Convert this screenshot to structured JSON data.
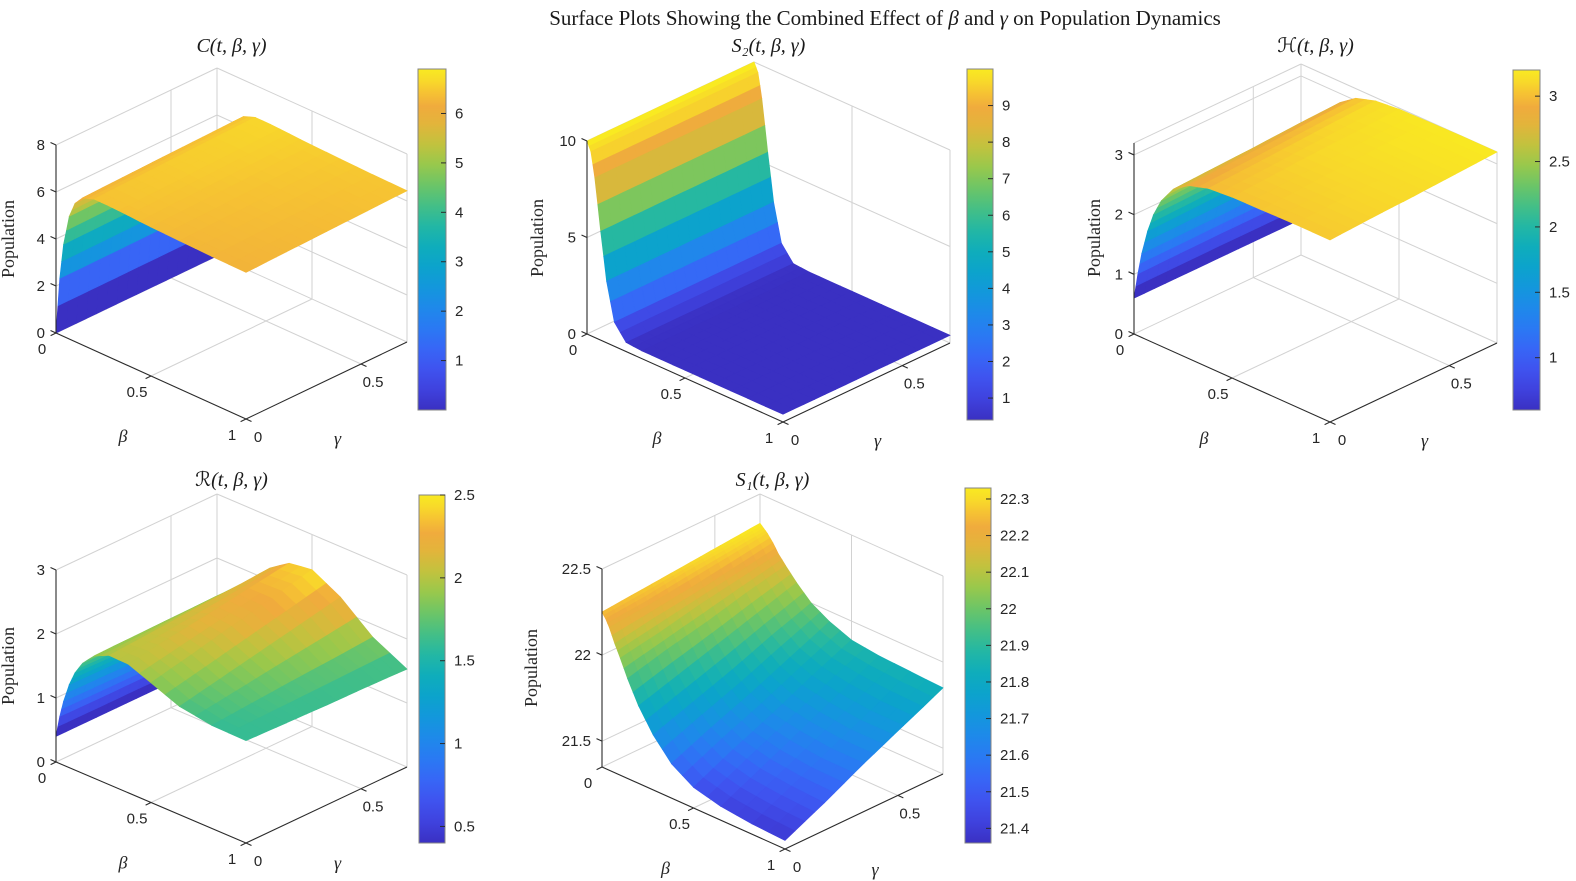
{
  "figure": {
    "title": "Surface Plots Showing the Combined Effect of β and γ on Population Dynamics",
    "background": "#ffffff"
  },
  "colors": {
    "colormap": "parula",
    "grid": "#d2d2d2",
    "axis": "#2b2b2b",
    "text": "#262626",
    "colorbar_border": "#848484"
  },
  "chart_data": [
    {
      "type": "surface",
      "title": "C(t, β, γ)",
      "xlabel": "β",
      "ylabel": "γ",
      "zlabel": "Population",
      "beta": [
        0,
        0.02,
        0.04,
        0.07,
        0.1,
        0.14,
        0.2,
        0.28,
        0.38,
        0.5,
        0.65,
        0.82,
        1.0
      ],
      "gamma": [
        0,
        0.175,
        0.35,
        0.525,
        0.7
      ],
      "z_by_gamma_row": [
        [
          0,
          2.4,
          3.92,
          5.22,
          5.88,
          6.26,
          6.43,
          6.43,
          6.39,
          6.34,
          6.3,
          6.26,
          6.24
        ],
        [
          0,
          2.41,
          3.95,
          5.26,
          5.92,
          6.31,
          6.48,
          6.48,
          6.44,
          6.39,
          6.35,
          6.31,
          6.29
        ],
        [
          0,
          2.43,
          3.97,
          5.3,
          5.97,
          6.36,
          6.53,
          6.53,
          6.49,
          6.44,
          6.4,
          6.36,
          6.34
        ],
        [
          0,
          2.45,
          4.0,
          5.34,
          6.01,
          6.4,
          6.58,
          6.58,
          6.54,
          6.49,
          6.45,
          6.41,
          6.39
        ],
        [
          0,
          2.47,
          4.03,
          5.38,
          6.06,
          6.45,
          6.63,
          6.63,
          6.59,
          6.54,
          6.5,
          6.46,
          6.44
        ]
      ],
      "xticks": [
        0,
        0.5,
        1
      ],
      "yticks": [
        0,
        0.5
      ],
      "zticks": [
        0,
        2,
        4,
        6,
        8
      ],
      "zlim": [
        0,
        8
      ],
      "clim": [
        0,
        6.9
      ],
      "colorbar_ticks": [
        1,
        2,
        3,
        4,
        5,
        6
      ]
    },
    {
      "type": "surface",
      "title": "S₂(t, β, γ)",
      "xlabel": "β",
      "ylabel": "γ",
      "zlabel": "Population",
      "beta": [
        0,
        0.02,
        0.04,
        0.07,
        0.1,
        0.14,
        0.2,
        0.28,
        0.38,
        0.5,
        0.65,
        0.82,
        1.0
      ],
      "gamma": [
        0,
        0.175,
        0.35,
        0.525,
        0.7
      ],
      "z_by_gamma_row": [
        [
          10,
          9.54,
          8.28,
          5.64,
          3.19,
          1.25,
          0.47,
          0.4,
          0.4,
          0.4,
          0.4,
          0.4,
          0.4
        ],
        [
          10,
          9.54,
          8.28,
          5.64,
          3.19,
          1.25,
          0.47,
          0.4,
          0.4,
          0.4,
          0.4,
          0.4,
          0.4
        ],
        [
          10,
          9.54,
          8.28,
          5.64,
          3.19,
          1.25,
          0.47,
          0.4,
          0.4,
          0.4,
          0.4,
          0.4,
          0.4
        ],
        [
          10,
          9.54,
          8.28,
          5.64,
          3.19,
          1.25,
          0.47,
          0.4,
          0.4,
          0.4,
          0.4,
          0.4,
          0.4
        ],
        [
          10,
          9.54,
          8.28,
          5.64,
          3.19,
          1.25,
          0.47,
          0.4,
          0.4,
          0.4,
          0.4,
          0.4,
          0.4
        ]
      ],
      "xticks": [
        0,
        0.5,
        1
      ],
      "yticks": [
        0,
        0.5
      ],
      "zticks": [
        0,
        5,
        10
      ],
      "zlim": [
        0,
        10
      ],
      "clim": [
        0.4,
        10
      ],
      "colorbar_ticks": [
        1,
        2,
        3,
        4,
        5,
        6,
        7,
        8,
        9
      ]
    },
    {
      "type": "surface",
      "title": "ℋ(t, β, γ)",
      "xlabel": "β",
      "ylabel": "γ",
      "zlabel": "Population",
      "beta": [
        0,
        0.02,
        0.04,
        0.07,
        0.1,
        0.14,
        0.2,
        0.28,
        0.38,
        0.5,
        0.65,
        0.82,
        1.0
      ],
      "gamma": [
        0,
        0.175,
        0.35,
        0.525,
        0.7
      ],
      "z_by_gamma_row": [
        [
          0.6,
          1.04,
          1.41,
          1.83,
          2.15,
          2.44,
          2.72,
          2.9,
          3.0,
          3.03,
          3.04,
          3.05,
          3.05
        ],
        [
          0.6,
          1.05,
          1.42,
          1.85,
          2.17,
          2.47,
          2.75,
          2.94,
          3.03,
          3.07,
          3.08,
          3.09,
          3.09
        ],
        [
          0.6,
          1.06,
          1.43,
          1.87,
          2.2,
          2.5,
          2.78,
          2.97,
          3.07,
          3.11,
          3.12,
          3.12,
          3.12
        ],
        [
          0.6,
          1.06,
          1.45,
          1.89,
          2.22,
          2.53,
          2.82,
          3.01,
          3.11,
          3.14,
          3.16,
          3.16,
          3.16
        ],
        [
          0.6,
          1.07,
          1.46,
          1.91,
          2.24,
          2.56,
          2.85,
          3.04,
          3.14,
          3.18,
          3.19,
          3.2,
          3.2
        ]
      ],
      "xticks": [
        0,
        0.5,
        1
      ],
      "yticks": [
        0,
        0.5
      ],
      "zticks": [
        0,
        1,
        2,
        3
      ],
      "zlim": [
        0,
        3.2
      ],
      "clim": [
        0.6,
        3.2
      ],
      "colorbar_ticks": [
        1,
        1.5,
        2,
        2.5,
        3
      ]
    },
    {
      "type": "surface",
      "title": "ℛ(t, β, γ)",
      "xlabel": "β",
      "ylabel": "γ",
      "zlabel": "Population",
      "beta": [
        0,
        0.02,
        0.04,
        0.07,
        0.1,
        0.14,
        0.2,
        0.28,
        0.38,
        0.5,
        0.65,
        0.82,
        1.0
      ],
      "gamma": [
        0,
        0.175,
        0.35,
        0.525,
        0.7
      ],
      "z_by_gamma_row": [
        [
          0.4,
          0.74,
          1.0,
          1.3,
          1.52,
          1.72,
          1.91,
          2.02,
          2.01,
          1.87,
          1.69,
          1.61,
          1.6
        ],
        [
          0.4,
          0.73,
          0.99,
          1.29,
          1.5,
          1.71,
          1.92,
          2.06,
          2.11,
          2.01,
          1.82,
          1.66,
          1.58
        ],
        [
          0.4,
          0.73,
          0.98,
          1.27,
          1.49,
          1.7,
          1.93,
          2.11,
          2.2,
          2.16,
          1.95,
          1.71,
          1.56
        ],
        [
          0.4,
          0.72,
          0.97,
          1.26,
          1.48,
          1.7,
          1.94,
          2.15,
          2.3,
          2.3,
          2.08,
          1.75,
          1.55
        ],
        [
          0.4,
          0.71,
          0.96,
          1.25,
          1.46,
          1.69,
          1.94,
          2.2,
          2.4,
          2.45,
          2.21,
          1.8,
          1.53
        ]
      ],
      "xticks": [
        0,
        0.5,
        1
      ],
      "yticks": [
        0,
        0.5
      ],
      "zticks": [
        0,
        1,
        2,
        3
      ],
      "zlim": [
        0,
        3
      ],
      "clim": [
        0.4,
        2.5
      ],
      "colorbar_ticks": [
        0.5,
        1,
        1.5,
        2,
        2.5
      ]
    },
    {
      "type": "surface",
      "title": "S₁(t, β, γ)",
      "xlabel": "β",
      "ylabel": "γ",
      "zlabel": "Population",
      "beta": [
        0,
        0.02,
        0.04,
        0.07,
        0.1,
        0.14,
        0.2,
        0.28,
        0.38,
        0.5,
        0.65,
        0.82,
        1.0
      ],
      "gamma": [
        0,
        0.175,
        0.35,
        0.525,
        0.7
      ],
      "z_by_gamma_row": [
        [
          22.25,
          22.22,
          22.18,
          22.1,
          22.03,
          21.93,
          21.8,
          21.67,
          21.55,
          21.47,
          21.43,
          21.41,
          21.4
        ],
        [
          22.27,
          22.24,
          22.2,
          22.14,
          22.07,
          21.99,
          21.87,
          21.75,
          21.65,
          21.58,
          21.54,
          21.52,
          21.51
        ],
        [
          22.29,
          22.27,
          22.23,
          22.17,
          22.12,
          22.04,
          21.94,
          21.83,
          21.74,
          21.68,
          21.65,
          21.63,
          21.63
        ],
        [
          22.31,
          22.29,
          22.26,
          22.21,
          22.16,
          22.1,
          22.01,
          21.92,
          21.84,
          21.79,
          21.76,
          21.74,
          21.74
        ],
        [
          22.33,
          22.31,
          22.29,
          22.25,
          22.2,
          22.15,
          22.08,
          22.0,
          21.94,
          21.89,
          21.87,
          21.86,
          21.85
        ]
      ],
      "xticks": [
        0,
        0.5,
        1
      ],
      "yticks": [
        0,
        0.5
      ],
      "zticks": [
        21.5,
        22,
        22.5
      ],
      "zlim": [
        21.35,
        22.5
      ],
      "clim": [
        21.36,
        22.33
      ],
      "colorbar_ticks": [
        21.4,
        21.5,
        21.6,
        21.7,
        21.8,
        21.9,
        22,
        22.1,
        22.2,
        22.3
      ]
    }
  ]
}
